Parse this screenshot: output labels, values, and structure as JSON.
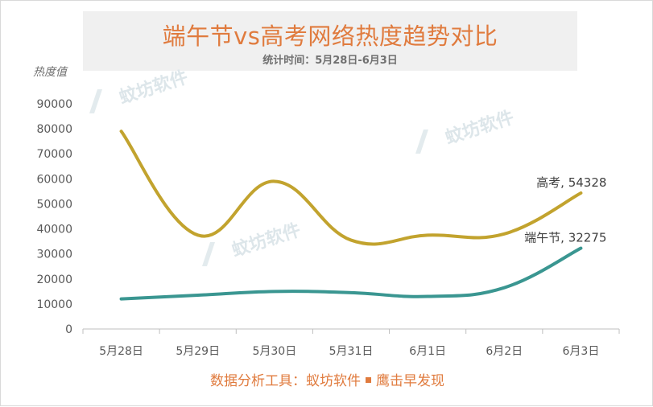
{
  "chart_data": {
    "type": "line",
    "title": "端午节vs高考网络热度趋势对比",
    "subtitle": "统计时间：5月28日-6月3日",
    "ylabel": "热度值",
    "categories": [
      "5月28日",
      "5月29日",
      "5月30日",
      "5月31日",
      "6月1日",
      "6月2日",
      "6月3日"
    ],
    "ylim": [
      0,
      90000
    ],
    "yticks": [
      0,
      10000,
      20000,
      30000,
      40000,
      50000,
      60000,
      70000,
      80000,
      90000
    ],
    "grid": false,
    "series": [
      {
        "name": "高考",
        "values": [
          79000,
          37500,
          59000,
          35500,
          37500,
          38000,
          54328
        ],
        "color": "#c2a32e",
        "end_label": "高考, 54328"
      },
      {
        "name": "端午节",
        "values": [
          12000,
          13500,
          15000,
          14500,
          13000,
          16500,
          32275
        ],
        "color": "#3a9691",
        "end_label": "端午节, 32275"
      }
    ],
    "watermark": "蚊坊软件"
  },
  "footer": {
    "source_label": "数据分析工具：蚁坊软件",
    "product": "鹰击早发现"
  }
}
